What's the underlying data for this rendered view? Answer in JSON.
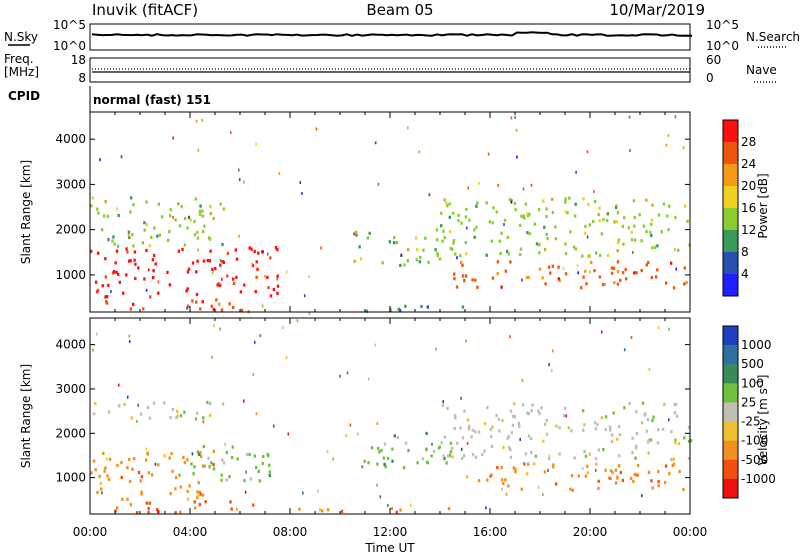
{
  "header": {
    "station": "Inuvik (fitACF)",
    "beam": "Beam 05",
    "date": "10/Mar/2019"
  },
  "panel_nsky": {
    "left_label": "N.Sky",
    "left_top": "10^5",
    "left_bottom": "10^0",
    "right_top": "10^5",
    "right_bottom": "10^0",
    "right_label": "N.Search"
  },
  "panel_freq": {
    "left_label_1": "Freq.",
    "left_label_2": "[MHz]",
    "left_top": "18",
    "left_bottom": "8",
    "right_top": "60",
    "right_bottom": "0",
    "right_label": "Nave"
  },
  "cpid": {
    "label": "CPID",
    "value": "normal (fast) 151"
  },
  "chart_data": [
    {
      "type": "heatmap",
      "title": "",
      "xlabel": "",
      "ylabel": "Slant Range [km]",
      "x_ticks": [
        "00:00",
        "04:00",
        "08:00",
        "12:00",
        "16:00",
        "20:00",
        "00:00"
      ],
      "y_ticks": [
        "1000",
        "2000",
        "3000",
        "4000"
      ],
      "ylim": [
        180,
        4600
      ],
      "colorbar": {
        "label": "Power [dB]",
        "ticks": [
          "4",
          "8",
          "12",
          "16",
          "20",
          "24",
          "28"
        ],
        "colors": [
          "#2020ff",
          "#2850b0",
          "#3a9a5a",
          "#8ccc30",
          "#f0d020",
          "#f59a15",
          "#f05510",
          "#ff1010"
        ]
      },
      "echo_regions": [
        {
          "t0": 0.0,
          "t1": 7.5,
          "r0": 500,
          "r1": 1600,
          "level": 28
        },
        {
          "t0": 0.5,
          "t1": 6.8,
          "r0": 180,
          "r1": 450,
          "level": 24
        },
        {
          "t0": 0.0,
          "t1": 5.5,
          "r0": 1600,
          "r1": 2700,
          "level": 12
        },
        {
          "t0": 8.0,
          "t1": 15.0,
          "r0": 180,
          "r1": 300,
          "level": 8
        },
        {
          "t0": 10.5,
          "t1": 14.5,
          "r0": 1200,
          "r1": 2000,
          "level": 12
        },
        {
          "t0": 14.5,
          "t1": 24.0,
          "r0": 700,
          "r1": 1300,
          "level": 24
        },
        {
          "t0": 14.0,
          "t1": 24.0,
          "r0": 1400,
          "r1": 2700,
          "level": 12
        }
      ]
    },
    {
      "type": "heatmap",
      "title": "",
      "xlabel": "Time UT",
      "ylabel": "Slant Range [km]",
      "x_ticks": [
        "00:00",
        "04:00",
        "08:00",
        "12:00",
        "16:00",
        "20:00",
        "00:00"
      ],
      "y_ticks": [
        "1000",
        "2000",
        "3000",
        "4000"
      ],
      "ylim": [
        180,
        4600
      ],
      "colorbar": {
        "label": "Velocity [m s-1]",
        "ticks": [
          "1000",
          "500",
          "100",
          "25",
          "-25",
          "-100",
          "-500",
          "-1000"
        ],
        "colors": [
          "#2040c0",
          "#3070a0",
          "#3a8a5a",
          "#70c040",
          "#bfbfb5",
          "#f0c030",
          "#f09020",
          "#f05010",
          "#ee1010"
        ]
      },
      "echo_regions": [
        {
          "t0": 0.0,
          "t1": 5.0,
          "r0": 500,
          "r1": 1600,
          "level": -100
        },
        {
          "t0": 3.5,
          "t1": 7.5,
          "r0": 900,
          "r1": 1700,
          "level": 100
        },
        {
          "t0": 0.5,
          "t1": 6.8,
          "r0": 180,
          "r1": 450,
          "level": -500
        },
        {
          "t0": 0.0,
          "t1": 5.5,
          "r0": 2300,
          "r1": 2700,
          "level": 25
        },
        {
          "t0": 8.0,
          "t1": 15.0,
          "r0": 180,
          "r1": 300,
          "level": -100
        },
        {
          "t0": 10.5,
          "t1": 14.5,
          "r0": 1200,
          "r1": 2000,
          "level": 100
        },
        {
          "t0": 14.5,
          "t1": 24.0,
          "r0": 700,
          "r1": 1300,
          "level": -100
        },
        {
          "t0": 14.0,
          "t1": 24.0,
          "r0": 1400,
          "r1": 2700,
          "level": 25
        }
      ]
    }
  ],
  "colors": {
    "background": "#ffffff",
    "axis": "#000000"
  }
}
